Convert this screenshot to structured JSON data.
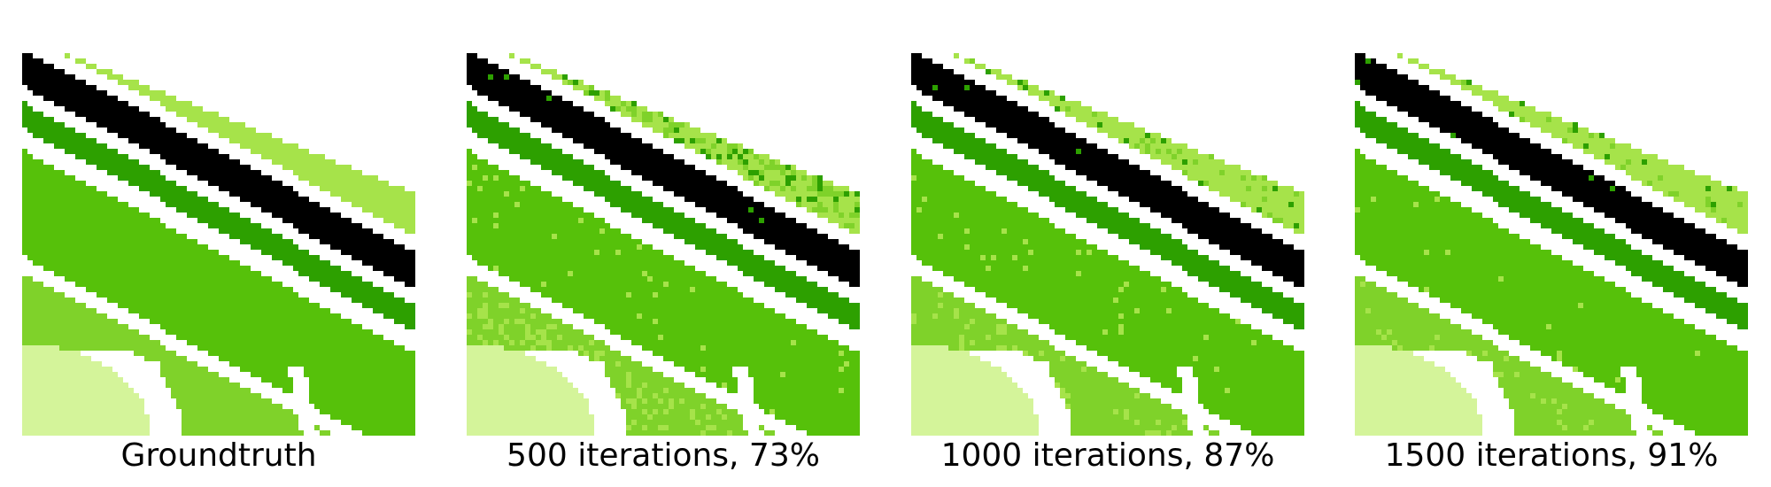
{
  "panels": [
    {
      "caption": "Groundtruth",
      "noise": 0
    },
    {
      "caption": "500 iterations, 73%",
      "noise": 0.27
    },
    {
      "caption": "1000 iterations, 87%",
      "noise": 0.13
    },
    {
      "caption": "1500 iterations, 91%",
      "noise": 0.09
    }
  ],
  "colors": {
    "lime": "#a6e34a",
    "black": "#000000",
    "dark_green": "#2da000",
    "medium_green": "#56c10a",
    "light_green": "#7fd22a",
    "pale_green": "#d4f49a",
    "white": "#ffffff"
  }
}
